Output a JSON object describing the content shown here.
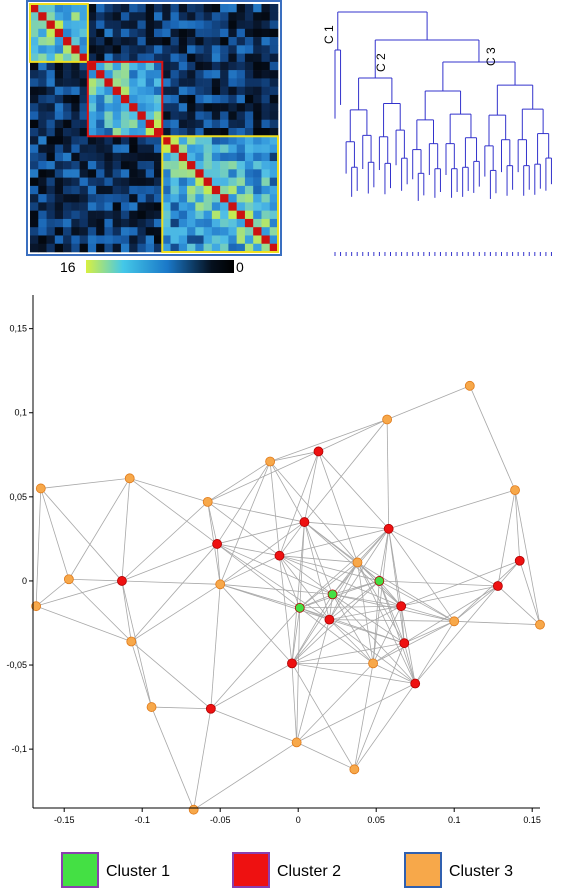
{
  "colorbar": {
    "max_label": "16",
    "min_label": "0"
  },
  "dendrogram": {
    "cluster_labels": [
      "C 1",
      "C 2",
      "C 3"
    ],
    "color": "#3333cc"
  },
  "heatmap": {
    "size": 30,
    "diagonal_color": "#cc1111",
    "blocks": [
      {
        "start": 0,
        "end": 7,
        "color": "#f0e020"
      },
      {
        "start": 7,
        "end": 16,
        "color": "#dd1111"
      },
      {
        "start": 16,
        "end": 30,
        "color": "#f0e020"
      }
    ]
  },
  "legend": [
    {
      "label": "Cluster 1",
      "color": "#44e044",
      "border": "#8a3fb0"
    },
    {
      "label": "Cluster 2",
      "color": "#ee1111",
      "border": "#8a3fb0"
    },
    {
      "label": "Cluster 3",
      "color": "#f7a84a",
      "border": "#3060b0"
    }
  ],
  "chart_data": {
    "type": "scatter",
    "xlim": [
      -0.17,
      0.155
    ],
    "ylim": [
      -0.135,
      0.17
    ],
    "xticks": [
      -0.15,
      -0.1,
      -0.05,
      0,
      0.05,
      0.1,
      0.15
    ],
    "xtick_labels": [
      "-0.15",
      "-0.1",
      "-0.05",
      "0",
      "0.05",
      "0.1",
      "0.15"
    ],
    "yticks": [
      -0.1,
      -0.05,
      0,
      0.05,
      0.1,
      0.15
    ],
    "ytick_labels": [
      "-0,1",
      "-0,05",
      "0",
      "0,05",
      "0,1",
      "0,15"
    ],
    "grid": false,
    "series": [
      {
        "name": "Cluster 1",
        "color": "#44e044",
        "points": [
          [
            0.001,
            -0.016
          ],
          [
            0.022,
            -0.008
          ],
          [
            0.052,
            0.0
          ]
        ]
      },
      {
        "name": "Cluster 2",
        "color": "#ee1111",
        "points": [
          [
            -0.113,
            0.0
          ],
          [
            -0.052,
            0.022
          ],
          [
            -0.012,
            0.015
          ],
          [
            0.013,
            0.077
          ],
          [
            0.004,
            0.035
          ],
          [
            0.058,
            0.031
          ],
          [
            0.02,
            -0.023
          ],
          [
            0.066,
            -0.015
          ],
          [
            0.068,
            -0.037
          ],
          [
            -0.004,
            -0.049
          ],
          [
            -0.056,
            -0.076
          ],
          [
            0.075,
            -0.061
          ],
          [
            0.128,
            -0.003
          ],
          [
            0.142,
            0.012
          ]
        ]
      },
      {
        "name": "Cluster 3",
        "color": "#f7a84a",
        "points": [
          [
            -0.168,
            -0.015
          ],
          [
            -0.165,
            0.055
          ],
          [
            -0.147,
            0.001
          ],
          [
            -0.108,
            0.061
          ],
          [
            -0.107,
            -0.036
          ],
          [
            -0.094,
            -0.075
          ],
          [
            -0.067,
            -0.136
          ],
          [
            -0.058,
            0.047
          ],
          [
            -0.05,
            -0.002
          ],
          [
            -0.018,
            0.071
          ],
          [
            0.038,
            0.011
          ],
          [
            0.048,
            -0.049
          ],
          [
            0.057,
            0.096
          ],
          [
            0.1,
            -0.024
          ],
          [
            -0.001,
            -0.096
          ],
          [
            0.036,
            -0.112
          ],
          [
            0.11,
            0.116
          ],
          [
            0.139,
            0.054
          ],
          [
            0.155,
            -0.026
          ]
        ]
      }
    ]
  }
}
